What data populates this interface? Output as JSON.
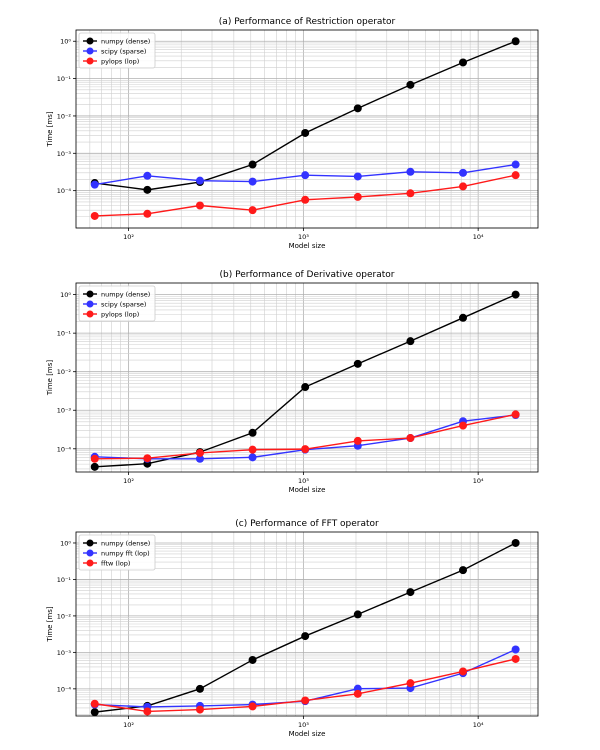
{
  "chart_data": [
    {
      "type": "line",
      "title": "(a) Performance of Restriction operator",
      "xlabel": "Model size",
      "ylabel": "Time [ms]",
      "xscale": "log",
      "yscale": "log",
      "xlim": [
        50,
        22000
      ],
      "ylim": [
        1e-05,
        2
      ],
      "xtick_labels": [
        "10²",
        "10³",
        "10⁴"
      ],
      "ytick_labels": [
        "10⁻⁴",
        "10⁻³",
        "10⁻²",
        "10⁻¹",
        "10⁰"
      ],
      "grid": true,
      "legend": "top-left",
      "x": [
        64,
        128,
        256,
        512,
        1024,
        2048,
        4096,
        8192,
        16384
      ],
      "series": [
        {
          "name": "numpy (dense)",
          "color": "#000000",
          "values": [
            0.00016,
            0.000105,
            0.00017,
            0.0005,
            0.0035,
            0.016,
            0.068,
            0.27,
            1.0
          ]
        },
        {
          "name": "scipy (sparse)",
          "color": "#3333ff",
          "values": [
            0.000145,
            0.00025,
            0.000185,
            0.000175,
            0.00026,
            0.00024,
            0.00032,
            0.0003,
            0.0005
          ]
        },
        {
          "name": "pylops (lop)",
          "color": "#ff1a1a",
          "values": [
            2.1e-05,
            2.4e-05,
            4e-05,
            3e-05,
            5.7e-05,
            6.8e-05,
            8.5e-05,
            0.00013,
            0.00026
          ]
        }
      ]
    },
    {
      "type": "line",
      "title": "(b) Performance of Derivative operator",
      "xlabel": "Model size",
      "ylabel": "Time [ms]",
      "xscale": "log",
      "yscale": "log",
      "xlim": [
        50,
        22000
      ],
      "ylim": [
        2.5e-05,
        2
      ],
      "xtick_labels": [
        "10²",
        "10³",
        "10⁴"
      ],
      "ytick_labels": [
        "10⁻⁴",
        "10⁻³",
        "10⁻²",
        "10⁻¹",
        "10⁰"
      ],
      "grid": true,
      "legend": "top-left",
      "x": [
        64,
        128,
        256,
        512,
        1024,
        2048,
        4096,
        8192,
        16384
      ],
      "series": [
        {
          "name": "numpy (dense)",
          "color": "#000000",
          "values": [
            3.4e-05,
            4.1e-05,
            8.2e-05,
            0.00026,
            0.004,
            0.016,
            0.062,
            0.25,
            1.0
          ]
        },
        {
          "name": "scipy (sparse)",
          "color": "#3333ff",
          "values": [
            6.2e-05,
            5.5e-05,
            5.5e-05,
            6e-05,
            9.5e-05,
            0.00012,
            0.00019,
            0.00052,
            0.00075
          ]
        },
        {
          "name": "pylops (lop)",
          "color": "#ff1a1a",
          "values": [
            5.5e-05,
            5.7e-05,
            7.8e-05,
            9.5e-05,
            9.8e-05,
            0.00016,
            0.00019,
            0.0004,
            0.00078
          ]
        }
      ]
    },
    {
      "type": "line",
      "title": "(c) Performance of FFT operator",
      "xlabel": "Model size",
      "ylabel": "Time [ms]",
      "xscale": "log",
      "yscale": "log",
      "xlim": [
        50,
        22000
      ],
      "ylim": [
        1.8e-05,
        2
      ],
      "xtick_labels": [
        "10²",
        "10³",
        "10⁴"
      ],
      "ytick_labels": [
        "10⁻⁴",
        "10⁻³",
        "10⁻²",
        "10⁻¹",
        "10⁰"
      ],
      "grid": true,
      "legend": "top-left",
      "x": [
        64,
        128,
        256,
        512,
        1024,
        2048,
        4096,
        8192,
        16384
      ],
      "series": [
        {
          "name": "numpy (dense)",
          "color": "#000000",
          "values": [
            2.3e-05,
            3.4e-05,
            0.0001,
            0.00062,
            0.0028,
            0.011,
            0.045,
            0.18,
            1.0
          ]
        },
        {
          "name": "numpy fft (lop)",
          "color": "#3333ff",
          "values": [
            3.7e-05,
            3.2e-05,
            3.4e-05,
            3.7e-05,
            4.6e-05,
            0.000101,
            0.000105,
            0.00027,
            0.0012
          ]
        },
        {
          "name": "fftw (lop)",
          "color": "#ff1a1a",
          "values": [
            3.9e-05,
            2.4e-05,
            2.7e-05,
            3.3e-05,
            4.8e-05,
            7.3e-05,
            0.000143,
            0.0003,
            0.00066
          ]
        }
      ]
    }
  ]
}
